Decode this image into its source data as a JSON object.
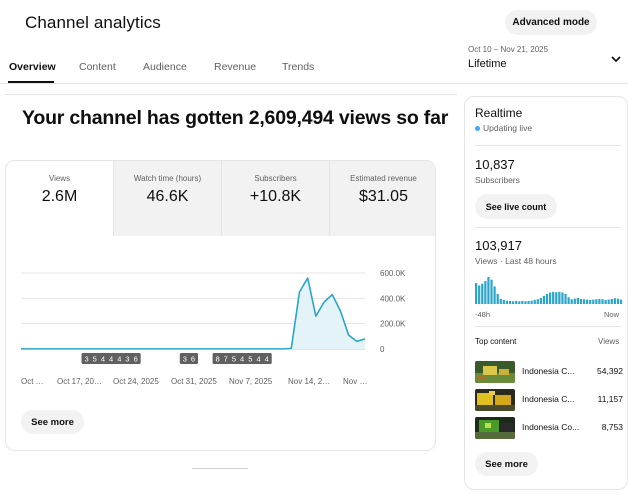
{
  "header": {
    "title": "Channel analytics",
    "advanced_mode": "Advanced mode",
    "date_range": "Oct 10 – Nov 21, 2025",
    "date_label": "Lifetime"
  },
  "tabs": [
    {
      "label": "Overview",
      "active": true
    },
    {
      "label": "Content",
      "active": false
    },
    {
      "label": "Audience",
      "active": false
    },
    {
      "label": "Revenue",
      "active": false
    },
    {
      "label": "Trends",
      "active": false
    }
  ],
  "main": {
    "headline": "Your channel has gotten 2,609,494 views so far",
    "metrics": [
      {
        "label": "Views",
        "value": "2.6M",
        "active": true
      },
      {
        "label": "Watch time (hours)",
        "value": "46.6K",
        "active": false
      },
      {
        "label": "Subscribers",
        "value": "+10.8K",
        "active": false
      },
      {
        "label": "Estimated revenue",
        "value": "$31.05",
        "active": false
      }
    ],
    "see_more": "See more"
  },
  "chart_data": {
    "type": "area",
    "series_color": "#2ba5c9",
    "fill_color": "#e3f3f8",
    "yticks": [
      {
        "label": "600.0K",
        "value": 600000
      },
      {
        "label": "400.0K",
        "value": 400000
      },
      {
        "label": "200.0K",
        "value": 200000
      },
      {
        "label": "0",
        "value": 0
      }
    ],
    "ylim": [
      0,
      600000
    ],
    "xlabels": [
      "Oct …",
      "Oct 17, 20…",
      "Oct 24, 2025",
      "Oct 31, 2025",
      "Nov 7, 2025",
      "Nov 14, 2…",
      "Nov …"
    ],
    "x_days": [
      "Oct 10",
      "Oct 11",
      "Oct 12",
      "Oct 13",
      "Oct 14",
      "Oct 15",
      "Oct 16",
      "Oct 17",
      "Oct 18",
      "Oct 19",
      "Oct 20",
      "Oct 21",
      "Oct 22",
      "Oct 23",
      "Oct 24",
      "Oct 25",
      "Oct 26",
      "Oct 27",
      "Oct 28",
      "Oct 29",
      "Oct 30",
      "Oct 31",
      "Nov 1",
      "Nov 2",
      "Nov 3",
      "Nov 4",
      "Nov 5",
      "Nov 6",
      "Nov 7",
      "Nov 8",
      "Nov 9",
      "Nov 10",
      "Nov 11",
      "Nov 12",
      "Nov 13",
      "Nov 14",
      "Nov 15",
      "Nov 16",
      "Nov 17",
      "Nov 18",
      "Nov 19",
      "Nov 20",
      "Nov 21"
    ],
    "values": [
      1000,
      1000,
      1000,
      1000,
      1000,
      1000,
      1000,
      1000,
      1000,
      1000,
      1000,
      1000,
      1000,
      1000,
      1000,
      1000,
      1000,
      1000,
      1000,
      1000,
      1000,
      1000,
      1000,
      1000,
      1000,
      1000,
      1000,
      1000,
      1000,
      1000,
      1000,
      1000,
      1000,
      5000,
      450000,
      560000,
      260000,
      370000,
      430000,
      300000,
      110000,
      60000,
      80000
    ],
    "markers": [
      {
        "day": "Oct 18",
        "label": "3"
      },
      {
        "day": "Oct 19",
        "label": "5"
      },
      {
        "day": "Oct 20",
        "label": "4"
      },
      {
        "day": "Oct 21",
        "label": "4"
      },
      {
        "day": "Oct 22",
        "label": "4"
      },
      {
        "day": "Oct 23",
        "label": "3"
      },
      {
        "day": "Oct 24",
        "label": "6"
      },
      {
        "day": "Oct 30",
        "label": "3"
      },
      {
        "day": "Oct 31",
        "label": "6"
      },
      {
        "day": "Nov 3",
        "label": "8"
      },
      {
        "day": "Nov 4",
        "label": "7"
      },
      {
        "day": "Nov 5",
        "label": "5"
      },
      {
        "day": "Nov 6",
        "label": "4"
      },
      {
        "day": "Nov 7",
        "label": "5"
      },
      {
        "day": "Nov 8",
        "label": "4"
      },
      {
        "day": "Nov 9",
        "label": "4"
      }
    ]
  },
  "realtime": {
    "title": "Realtime",
    "status": "Updating live",
    "subscribers_value": "10,837",
    "subscribers_label": "Subscribers",
    "live_count_button": "See live count",
    "views_value": "103,917",
    "views_label": "Views · Last 48 hours",
    "axis_left": "-48h",
    "axis_right": "Now",
    "bar_color": "#2ba5c9",
    "bars": [
      62,
      55,
      60,
      68,
      80,
      72,
      52,
      30,
      15,
      12,
      10,
      9,
      8,
      9,
      8,
      9,
      8,
      9,
      10,
      12,
      14,
      18,
      24,
      30,
      34,
      36,
      35,
      36,
      34,
      30,
      20,
      14,
      16,
      18,
      15,
      14,
      13,
      12,
      13,
      14,
      15,
      14,
      12,
      13,
      15,
      17,
      16,
      13
    ],
    "top_content_title": "Top content",
    "top_content_views_label": "Views",
    "top_content": [
      {
        "title": "Indonesia C...",
        "views": "54,392",
        "thumb": "green-yellow"
      },
      {
        "title": "Indonesia C...",
        "views": "11,157",
        "thumb": "yellow-dark"
      },
      {
        "title": "Indonesia Co...",
        "views": "8,753",
        "thumb": "green-black"
      }
    ],
    "see_more": "See more"
  }
}
